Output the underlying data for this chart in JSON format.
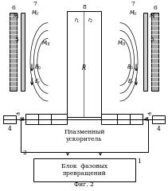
{
  "fig_caption": "Фиг. 2",
  "bg_color": "#ffffff",
  "box_plasma_label": "Плазменный\nускоритель",
  "box_phase_label": "Блок  фазовых\nпревращений",
  "lw": 0.7,
  "fs": 5.5,
  "fs_small": 4.8
}
